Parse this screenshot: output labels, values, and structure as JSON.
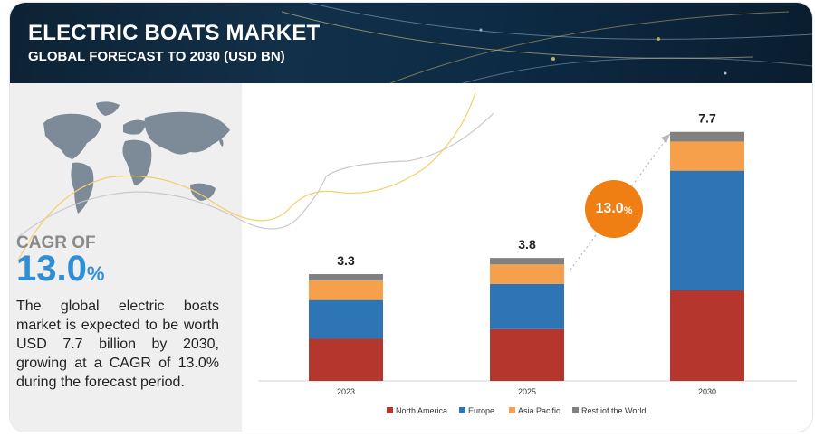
{
  "header": {
    "title": "ELECTRIC BOATS MARKET",
    "subtitle": "GLOBAL FORECAST TO 2030 (USD BN)"
  },
  "left_panel": {
    "cagr_label": "CAGR OF",
    "cagr_value": "13.0",
    "cagr_unit": "%",
    "description": "The global electric boats market is expected to be worth USD 7.7 billion by 2030, growing at a CAGR of 13.0% during the forecast period.",
    "map_icon": "world-map-icon"
  },
  "growth_badge": {
    "value": "13.0",
    "unit": "%"
  },
  "chart_data": {
    "type": "bar",
    "stacked": true,
    "categories": [
      "2023",
      "2025",
      "2030"
    ],
    "totals": [
      "3.3",
      "3.8",
      "7.7"
    ],
    "series": [
      {
        "name": "North America",
        "color": "#b5362c",
        "values": [
          1.3,
          1.6,
          2.8
        ]
      },
      {
        "name": "Europe",
        "color": "#2e75b6",
        "values": [
          1.2,
          1.4,
          3.7
        ]
      },
      {
        "name": "Asia Pacific",
        "color": "#f7a04b",
        "values": [
          0.6,
          0.6,
          0.9
        ]
      },
      {
        "name": "Rest iof the World",
        "color": "#808080",
        "values": [
          0.2,
          0.2,
          0.3
        ]
      }
    ],
    "title": "",
    "xlabel": "",
    "ylabel": "",
    "ylim": [
      0,
      8
    ],
    "grid": false,
    "legend": "bottom"
  }
}
